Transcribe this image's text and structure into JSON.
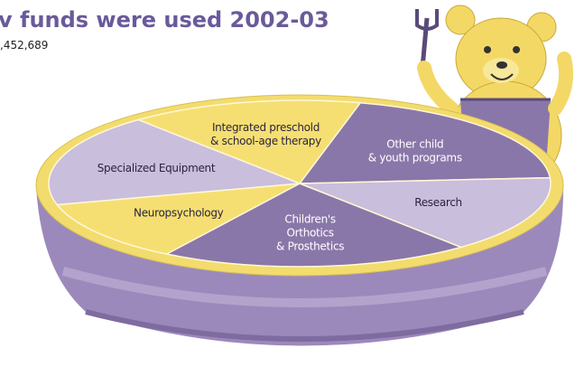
{
  "chart_data": {
    "type": "pie",
    "title": "v funds were used 2002-03",
    "subtitle": ",452,689",
    "categories": [
      [
        "Integrated preschold",
        "& school-age therapy"
      ],
      [
        "Other child",
        "& youth programs"
      ],
      [
        "Research"
      ],
      [
        "Children's",
        "Orthotics",
        "& Prosthetics"
      ],
      [
        "Neuropsychology"
      ],
      [
        "Specialized Equipment"
      ]
    ],
    "values": [
      15,
      20,
      15,
      20,
      12,
      18
    ],
    "colors": [
      "#f6df72",
      "#8a77a9",
      "#c9bedc",
      "#8a77a9",
      "#f6df72",
      "#c9bedc"
    ]
  }
}
